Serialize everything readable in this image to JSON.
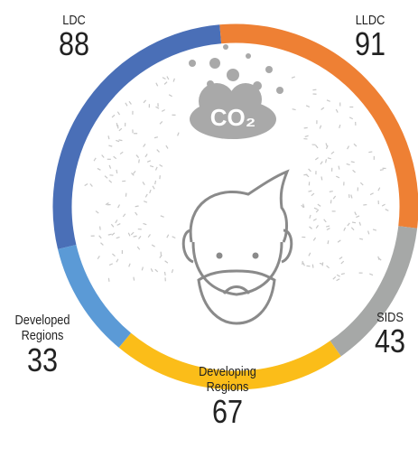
{
  "chart_data": {
    "type": "donut",
    "categories": [
      "LDC",
      "LLDC",
      "SIDS",
      "Developing Regions",
      "Developed Regions"
    ],
    "values": [
      88,
      91,
      43,
      67,
      33
    ],
    "colors": [
      "#4a6fb7",
      "#ee8034",
      "#a6a8a7",
      "#fbbd19",
      "#5b9ad6"
    ],
    "center_icon_text": "CO₂"
  }
}
